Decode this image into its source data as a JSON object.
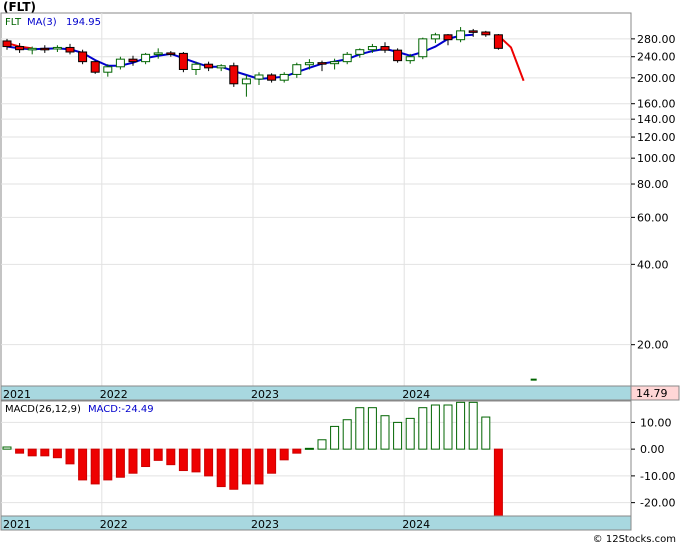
{
  "chart_data": [
    {
      "type": "candlestick",
      "panel": "price",
      "title": "(FLT)",
      "legend": [
        {
          "name": "FLT",
          "color": "#006400"
        },
        {
          "name": "MA(3)",
          "color": "#0000cc"
        },
        {
          "name": "194.95",
          "color": "#0000cc"
        }
      ],
      "y_scale": "log",
      "ylim": [
        14,
        350
      ],
      "y_ticks": [
        20,
        40,
        60,
        80,
        100,
        120,
        140,
        160,
        200,
        240,
        280
      ],
      "y_tick_labels": [
        "20.00",
        "40.00",
        "60.00",
        "80.00",
        "100.00",
        "120.00",
        "140.00",
        "160.00",
        "200.00",
        "240.00",
        "280.00"
      ],
      "x_labels": [
        {
          "label": "2021",
          "index": 0
        },
        {
          "label": "2022",
          "index": 8
        },
        {
          "label": "2023",
          "index": 20
        },
        {
          "label": "2024",
          "index": 32
        }
      ],
      "last_value": "14.79",
      "candles": [
        {
          "m": "2021-01",
          "o": 275,
          "h": 280,
          "l": 255,
          "c": 262
        },
        {
          "m": "2021-02",
          "o": 262,
          "h": 270,
          "l": 248,
          "c": 255
        },
        {
          "m": "2021-03",
          "o": 255,
          "h": 262,
          "l": 245,
          "c": 258
        },
        {
          "m": "2021-04",
          "o": 258,
          "h": 265,
          "l": 248,
          "c": 257
        },
        {
          "m": "2021-05",
          "o": 257,
          "h": 265,
          "l": 250,
          "c": 260
        },
        {
          "m": "2021-06",
          "o": 260,
          "h": 268,
          "l": 245,
          "c": 250
        },
        {
          "m": "2021-07",
          "o": 250,
          "h": 255,
          "l": 225,
          "c": 230
        },
        {
          "m": "2021-08",
          "o": 230,
          "h": 232,
          "l": 207,
          "c": 210
        },
        {
          "m": "2021-09",
          "o": 210,
          "h": 225,
          "l": 202,
          "c": 220
        },
        {
          "m": "2021-10",
          "o": 220,
          "h": 240,
          "l": 215,
          "c": 235
        },
        {
          "m": "2021-11",
          "o": 235,
          "h": 242,
          "l": 222,
          "c": 230
        },
        {
          "m": "2021-12",
          "o": 230,
          "h": 248,
          "l": 225,
          "c": 245
        },
        {
          "m": "2022-01",
          "o": 245,
          "h": 258,
          "l": 236,
          "c": 248
        },
        {
          "m": "2022-02",
          "o": 248,
          "h": 252,
          "l": 240,
          "c": 247
        },
        {
          "m": "2022-03",
          "o": 247,
          "h": 250,
          "l": 210,
          "c": 215
        },
        {
          "m": "2022-04",
          "o": 215,
          "h": 230,
          "l": 205,
          "c": 225
        },
        {
          "m": "2022-05",
          "o": 225,
          "h": 230,
          "l": 212,
          "c": 218
        },
        {
          "m": "2022-06",
          "o": 218,
          "h": 225,
          "l": 212,
          "c": 222
        },
        {
          "m": "2022-07",
          "o": 222,
          "h": 228,
          "l": 185,
          "c": 190
        },
        {
          "m": "2022-08",
          "o": 190,
          "h": 205,
          "l": 170,
          "c": 198
        },
        {
          "m": "2022-09",
          "o": 198,
          "h": 210,
          "l": 188,
          "c": 205
        },
        {
          "m": "2022-10",
          "o": 205,
          "h": 208,
          "l": 192,
          "c": 196
        },
        {
          "m": "2022-11",
          "o": 196,
          "h": 210,
          "l": 192,
          "c": 206
        },
        {
          "m": "2022-12",
          "o": 206,
          "h": 228,
          "l": 200,
          "c": 224
        },
        {
          "m": "2023-01",
          "o": 224,
          "h": 235,
          "l": 215,
          "c": 228
        },
        {
          "m": "2023-02",
          "o": 228,
          "h": 232,
          "l": 212,
          "c": 226
        },
        {
          "m": "2023-03",
          "o": 226,
          "h": 236,
          "l": 215,
          "c": 230
        },
        {
          "m": "2023-04",
          "o": 230,
          "h": 250,
          "l": 225,
          "c": 245
        },
        {
          "m": "2023-05",
          "o": 245,
          "h": 258,
          "l": 238,
          "c": 255
        },
        {
          "m": "2023-06",
          "o": 255,
          "h": 268,
          "l": 248,
          "c": 262
        },
        {
          "m": "2023-07",
          "o": 262,
          "h": 272,
          "l": 248,
          "c": 254
        },
        {
          "m": "2023-08",
          "o": 254,
          "h": 258,
          "l": 228,
          "c": 232
        },
        {
          "m": "2023-09",
          "o": 232,
          "h": 246,
          "l": 226,
          "c": 240
        },
        {
          "m": "2023-10",
          "o": 240,
          "h": 283,
          "l": 235,
          "c": 280
        },
        {
          "m": "2023-11",
          "o": 280,
          "h": 295,
          "l": 270,
          "c": 290
        },
        {
          "m": "2023-12",
          "o": 290,
          "h": 292,
          "l": 265,
          "c": 278
        },
        {
          "m": "2024-01",
          "o": 278,
          "h": 310,
          "l": 272,
          "c": 300
        },
        {
          "m": "2024-02",
          "o": 300,
          "h": 305,
          "l": 285,
          "c": 297
        },
        {
          "m": "2024-03",
          "o": 297,
          "h": 300,
          "l": 285,
          "c": 290
        },
        {
          "m": "2024-04",
          "o": 290,
          "h": 292,
          "l": 255,
          "c": 258
        }
      ],
      "ma_blue": [
        262,
        258,
        256,
        257,
        258,
        256,
        248,
        233,
        222,
        222,
        228,
        237,
        242,
        246,
        237,
        228,
        220,
        220,
        212,
        205,
        198,
        200,
        202,
        210,
        218,
        226,
        230,
        235,
        245,
        252,
        257,
        250,
        242,
        250,
        262,
        280,
        288,
        290
      ],
      "ma_red": [
        {
          "index": 0,
          "value": 270
        },
        {
          "index": 1,
          "value": 262
        },
        {
          "index": 2,
          "value": 258
        },
        {
          "index": 39,
          "value": 288
        },
        {
          "index": 40,
          "value": 260
        },
        {
          "index": 41,
          "value": 195
        }
      ],
      "last_tick": {
        "index": 41.8,
        "value": 14.79
      }
    },
    {
      "type": "histogram",
      "panel": "macd",
      "legend": [
        {
          "name": "MACD(26,12,9)",
          "color": "#000000"
        },
        {
          "name": "MACD:-24.49",
          "color": "#0000cc"
        }
      ],
      "ylim": [
        -25,
        18
      ],
      "y_ticks": [
        10,
        0,
        -10,
        -20
      ],
      "y_tick_labels": [
        "10.00",
        "0.00",
        "-10.00",
        "-20.00"
      ],
      "x_labels": [
        {
          "label": "2021",
          "index": 0
        },
        {
          "label": "2022",
          "index": 8
        },
        {
          "label": "2023",
          "index": 20
        },
        {
          "label": "2024",
          "index": 32
        }
      ],
      "values": [
        0.8,
        -1.5,
        -2.5,
        -2.5,
        -3.2,
        -5.5,
        -11.5,
        -13,
        -11.5,
        -10.5,
        -9,
        -6.5,
        -4.2,
        -5.8,
        -8,
        -8.5,
        -10,
        -14,
        -15,
        -13,
        -13,
        -9,
        -4,
        -1.5,
        0.3,
        3.5,
        8.5,
        11,
        15.5,
        15.5,
        12.5,
        10,
        11.5,
        15.5,
        16.5,
        16.5,
        17.5,
        17.5,
        12,
        -25
      ]
    }
  ],
  "footer": {
    "credit": "© 12Stocks.com"
  }
}
